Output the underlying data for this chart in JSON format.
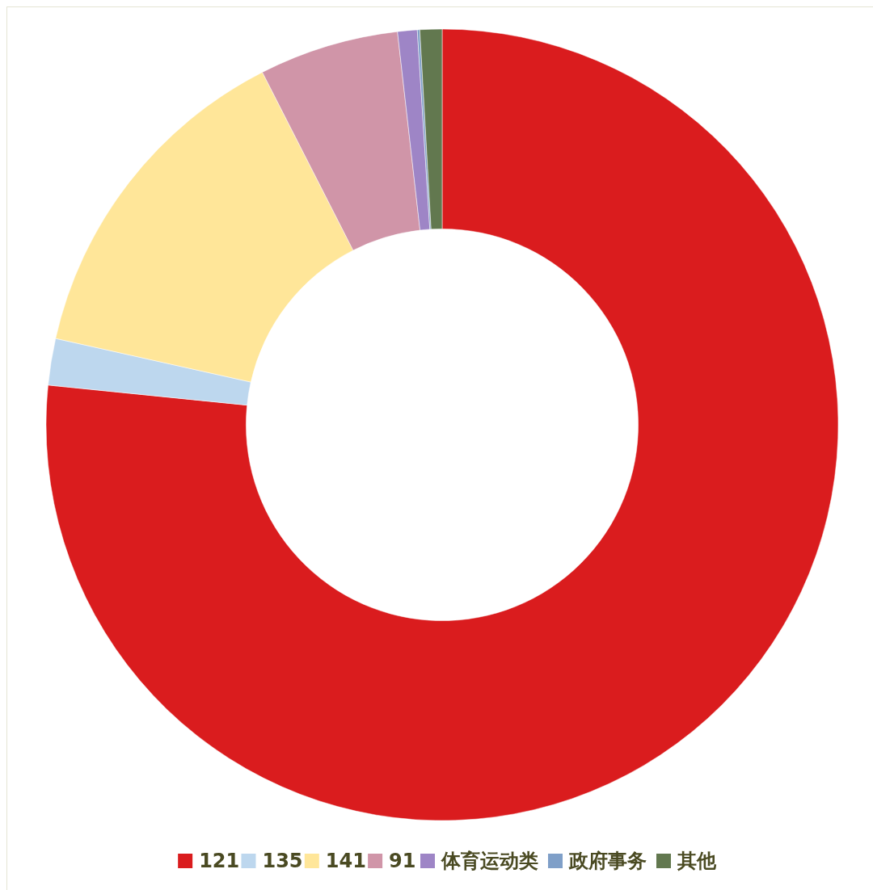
{
  "chart_data": {
    "type": "donut",
    "categories": [
      "121",
      "135",
      "141",
      "91",
      "体育运动类",
      "政府事务",
      "其他"
    ],
    "values": [
      76.6,
      1.9,
      14.0,
      5.7,
      0.8,
      0.1,
      0.9
    ],
    "colors": [
      "#da1c1e",
      "#bdd7ee",
      "#ffe699",
      "#d095a8",
      "#9e85c6",
      "#7f9fc8",
      "#62784f"
    ],
    "legend": "bottom right"
  }
}
